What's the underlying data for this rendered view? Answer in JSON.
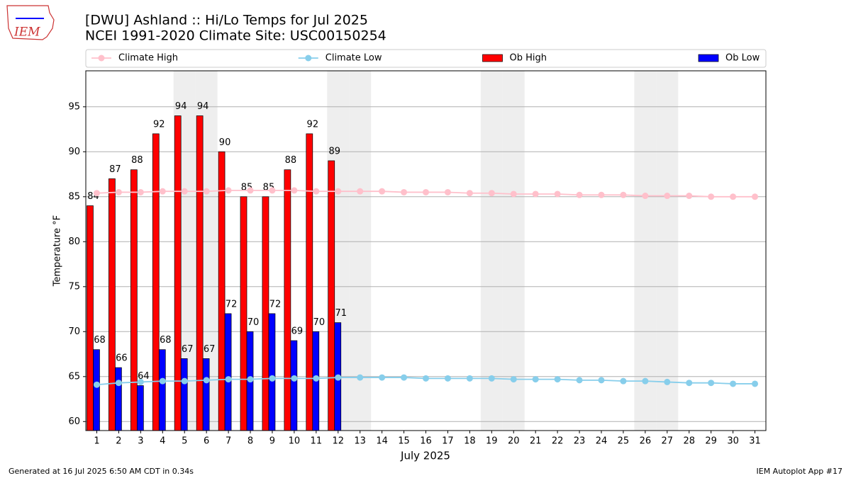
{
  "chart_data": {
    "type": "bar",
    "title": "[DWU] Ashland :: Hi/Lo Temps for Jul 2025",
    "subtitle": "NCEI 1991-2020 Climate Site: USC00150254",
    "ylabel": "Temperature °F",
    "xlabel": "July 2025",
    "logo_text": "IEM",
    "footer_left": "Generated at 16 Jul 2025 6:50 AM CDT in 0.34s",
    "footer_right": "IEM Autoplot App #17",
    "categories": [
      "1",
      "2",
      "3",
      "4",
      "5",
      "6",
      "7",
      "8",
      "9",
      "10",
      "11",
      "12",
      "13",
      "14",
      "15",
      "16",
      "17",
      "18",
      "19",
      "20",
      "21",
      "22",
      "23",
      "24",
      "25",
      "26",
      "27",
      "28",
      "29",
      "30",
      "31"
    ],
    "shaded_categories": [
      5,
      6,
      12,
      13,
      19,
      20,
      26,
      27
    ],
    "shade_color": "#eeeeee",
    "series": [
      {
        "name": "Climate High",
        "color": "#ffc0cb",
        "kind": "line",
        "values": [
          85.4,
          85.5,
          85.5,
          85.6,
          85.6,
          85.6,
          85.7,
          85.7,
          85.7,
          85.7,
          85.6,
          85.6,
          85.6,
          85.6,
          85.5,
          85.5,
          85.5,
          85.4,
          85.4,
          85.3,
          85.3,
          85.3,
          85.2,
          85.2,
          85.2,
          85.1,
          85.1,
          85.1,
          85.0,
          85.0,
          85.0
        ]
      },
      {
        "name": "Climate Low",
        "color": "#87ceeb",
        "kind": "line",
        "values": [
          64.1,
          64.3,
          64.4,
          64.5,
          64.5,
          64.6,
          64.7,
          64.7,
          64.8,
          64.8,
          64.8,
          64.9,
          64.9,
          64.9,
          64.9,
          64.8,
          64.8,
          64.8,
          64.8,
          64.7,
          64.7,
          64.7,
          64.6,
          64.6,
          64.5,
          64.5,
          64.4,
          64.3,
          64.3,
          64.2,
          64.2
        ]
      },
      {
        "name": "Ob High",
        "color": "#ff0000",
        "kind": "bar",
        "values": [
          84,
          87,
          88,
          92,
          94,
          94,
          90,
          85,
          85,
          88,
          92,
          89,
          null,
          null,
          null,
          null,
          null,
          null,
          null,
          null,
          null,
          null,
          null,
          null,
          null,
          null,
          null,
          null,
          null,
          null,
          null
        ]
      },
      {
        "name": "Ob Low",
        "color": "#0000ff",
        "kind": "bar",
        "values": [
          68,
          66,
          64,
          68,
          67,
          67,
          72,
          70,
          72,
          69,
          70,
          71,
          null,
          null,
          null,
          null,
          null,
          null,
          null,
          null,
          null,
          null,
          null,
          null,
          null,
          null,
          null,
          null,
          null,
          null,
          null
        ]
      }
    ],
    "ylim": [
      59,
      99
    ],
    "yticks": [
      60,
      65,
      70,
      75,
      80,
      85,
      90,
      95
    ],
    "grid": true
  }
}
